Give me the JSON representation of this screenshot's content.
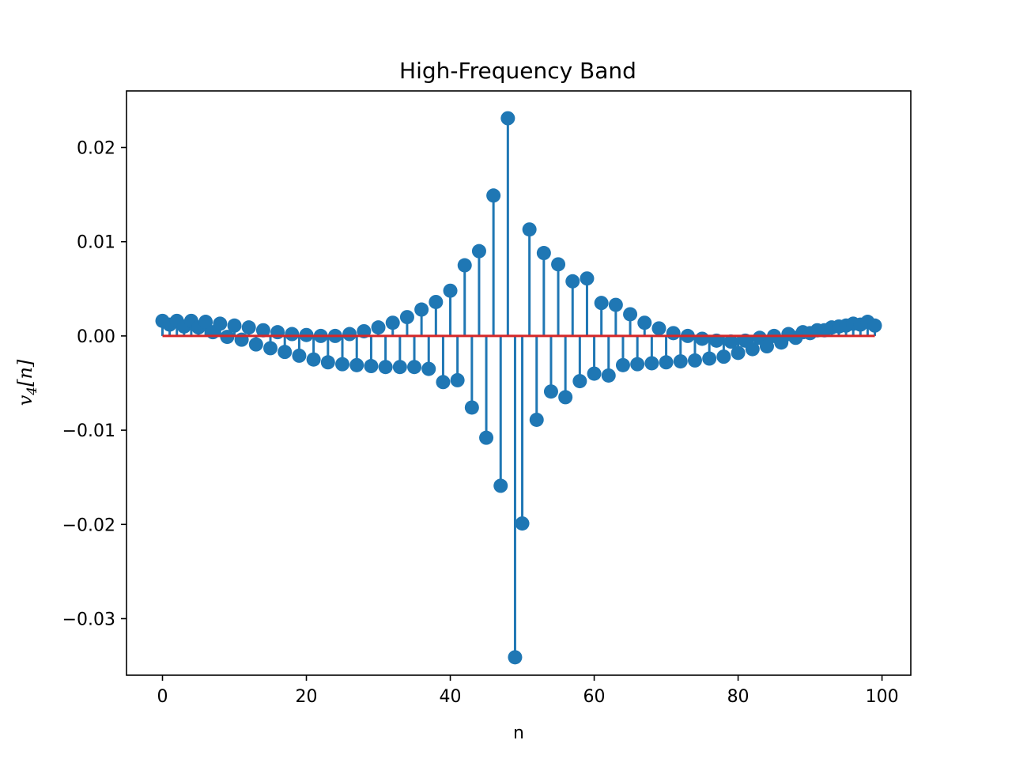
{
  "chart_data": {
    "type": "stem",
    "title": "High-Frequency Band",
    "xlabel": "n",
    "ylabel": {
      "base": "v",
      "subscript": "4",
      "open": "[",
      "var": "n",
      "close": "]"
    },
    "xlim": [
      -5,
      104
    ],
    "ylim": [
      -0.036,
      0.026
    ],
    "xticks": [
      0,
      20,
      40,
      60,
      80,
      100
    ],
    "xtick_labels": [
      "0",
      "20",
      "40",
      "60",
      "80",
      "100"
    ],
    "yticks": [
      0.02,
      0.01,
      0.0,
      -0.01,
      -0.02,
      -0.03
    ],
    "ytick_labels": [
      "0.02",
      "0.01",
      "0.00",
      "−0.01",
      "−0.02",
      "−0.03"
    ],
    "marker_color": "#1f77b4",
    "baseline_color": "#d62728",
    "baseline": 0,
    "x": [
      0,
      1,
      2,
      3,
      4,
      5,
      6,
      7,
      8,
      9,
      10,
      11,
      12,
      13,
      14,
      15,
      16,
      17,
      18,
      19,
      20,
      21,
      22,
      23,
      24,
      25,
      26,
      27,
      28,
      29,
      30,
      31,
      32,
      33,
      34,
      35,
      36,
      37,
      38,
      39,
      40,
      41,
      42,
      43,
      44,
      45,
      46,
      47,
      48,
      49,
      50,
      51,
      52,
      53,
      54,
      55,
      56,
      57,
      58,
      59,
      60,
      61,
      62,
      63,
      64,
      65,
      66,
      67,
      68,
      69,
      70,
      71,
      72,
      73,
      74,
      75,
      76,
      77,
      78,
      79,
      80,
      81,
      82,
      83,
      84,
      85,
      86,
      87,
      88,
      89,
      90,
      91,
      92,
      93,
      94,
      95,
      96,
      97,
      98,
      99
    ],
    "values": [
      0.0016,
      0.0012,
      0.0016,
      0.001,
      0.0016,
      0.0009,
      0.0015,
      0.0004,
      0.0013,
      -0.0001,
      0.0011,
      -0.0004,
      0.0009,
      -0.0009,
      0.0006,
      -0.0013,
      0.0004,
      -0.0017,
      0.0002,
      -0.0021,
      0.0001,
      -0.0025,
      0.0,
      -0.0028,
      0.0,
      -0.003,
      0.0002,
      -0.0031,
      0.0005,
      -0.0032,
      0.0009,
      -0.0033,
      0.0014,
      -0.0033,
      0.002,
      -0.0033,
      0.0028,
      -0.0035,
      0.0036,
      -0.0049,
      0.0048,
      -0.0047,
      0.0075,
      -0.0076,
      0.009,
      -0.0108,
      0.0149,
      -0.0159,
      0.0231,
      -0.0341,
      -0.0199,
      0.0113,
      -0.0089,
      0.0088,
      -0.0059,
      0.0076,
      -0.0065,
      0.0058,
      -0.0048,
      0.0061,
      -0.004,
      0.0035,
      -0.0042,
      0.0033,
      -0.0031,
      0.0023,
      -0.003,
      0.0014,
      -0.0029,
      0.0008,
      -0.0028,
      0.0003,
      -0.0027,
      0.0,
      -0.0026,
      -0.0003,
      -0.0024,
      -0.0005,
      -0.0022,
      -0.0006,
      -0.0018,
      -0.0005,
      -0.0014,
      -0.0002,
      -0.0011,
      0.0,
      -0.0007,
      0.0002,
      -0.0002,
      0.0004,
      0.0003,
      0.0006,
      0.0006,
      0.0009,
      0.001,
      0.0011,
      0.0013,
      0.0012,
      0.0015,
      0.0011
    ]
  }
}
